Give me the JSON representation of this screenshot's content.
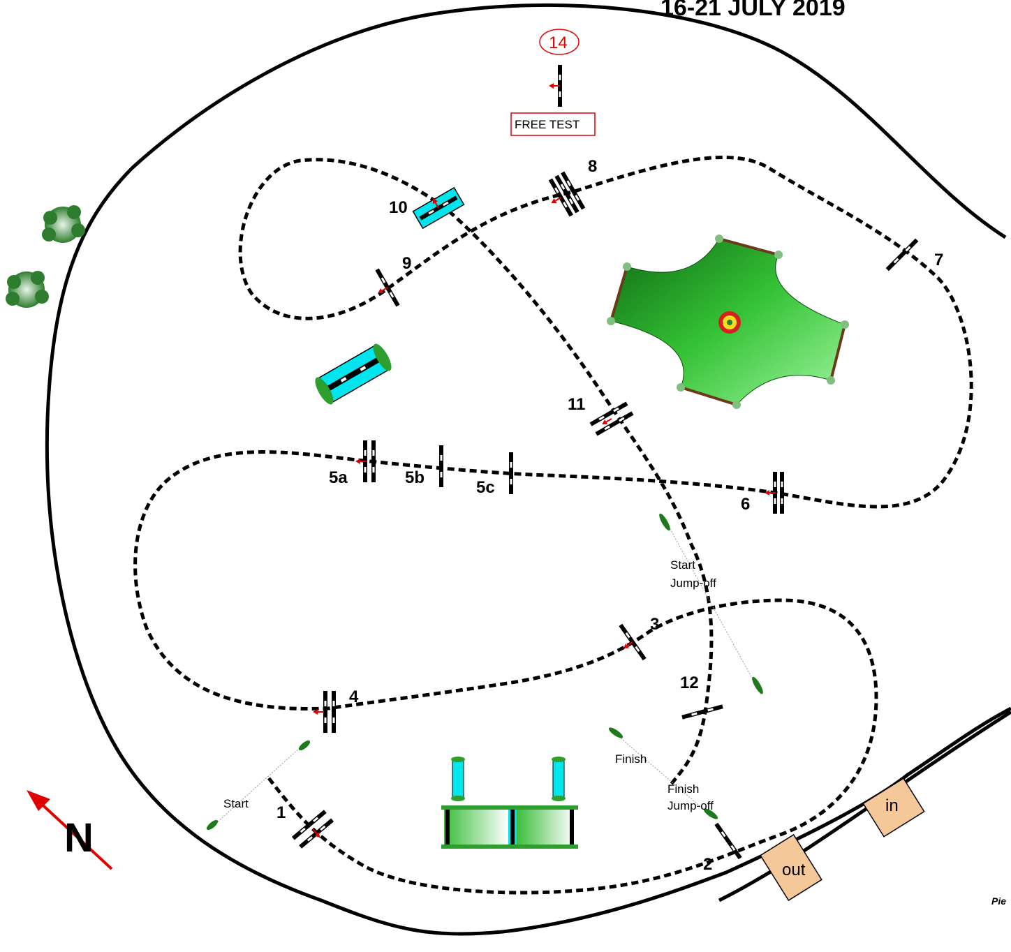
{
  "header": {
    "dates": "16-21 JULY 2019"
  },
  "credit": "Pie",
  "fence_numbers": {
    "f1": "1",
    "f2": "2",
    "f3": "3",
    "f4": "4",
    "f5a": "5a",
    "f5b": "5b",
    "f5c": "5c",
    "f6": "6",
    "f7": "7",
    "f8": "8",
    "f9": "9",
    "f10": "10",
    "f11": "11",
    "f12": "12",
    "f14": "14"
  },
  "labels": {
    "free_test": "FREE TEST",
    "start": "Start",
    "start_jumpoff_1": "Start",
    "start_jumpoff_2": "Jump-off",
    "finish": "Finish",
    "finish_jumpoff_1": "Finish",
    "finish_jumpoff_2": "Jump-off",
    "gate_in": "in",
    "gate_out": "out",
    "north": "N"
  },
  "colors": {
    "arrow": "#e00000",
    "water": "#00e5ee",
    "grass": "#2e9e2e",
    "gate": "#f5c89a",
    "flag_green": "#1d7a1d"
  }
}
